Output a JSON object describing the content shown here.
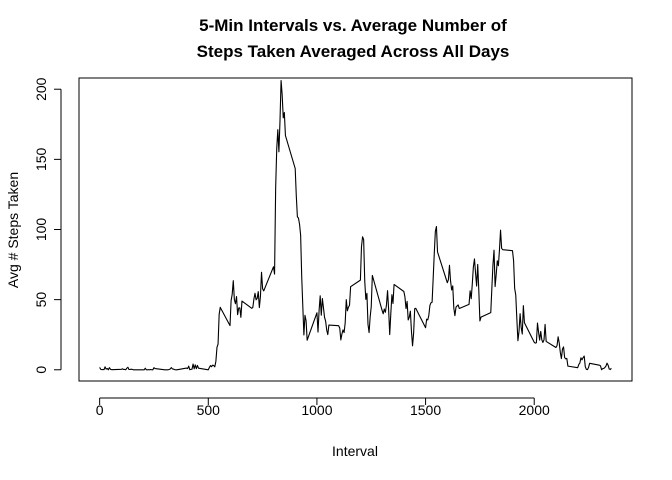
{
  "chart_data": {
    "type": "line",
    "title_line1": "5-Min Intervals vs. Average Number of",
    "title_line2": "Steps Taken Averaged Across All Days",
    "xlabel": "Interval",
    "ylabel": "Avg # Steps Taken",
    "xlim": [
      -95,
      2450
    ],
    "ylim": [
      -8,
      208
    ],
    "x_ticks": [
      0,
      500,
      1000,
      1500,
      2000
    ],
    "x_tick_labels": [
      "0",
      "500",
      "1000",
      "1500",
      "2000"
    ],
    "y_ticks": [
      0,
      50,
      100,
      150,
      200
    ],
    "y_tick_labels": [
      "0",
      "50",
      "100",
      "150",
      "200"
    ],
    "grid": false,
    "legend": "none",
    "series": [
      {
        "color": "#000000",
        "points": [
          [
            0,
            1.7
          ],
          [
            5,
            0.3
          ],
          [
            10,
            0.1
          ],
          [
            15,
            0.2
          ],
          [
            20,
            0.1
          ],
          [
            25,
            2.1
          ],
          [
            30,
            0.5
          ],
          [
            35,
            0.9
          ],
          [
            40,
            0
          ],
          [
            45,
            1.5
          ],
          [
            50,
            0.3
          ],
          [
            55,
            0.1
          ],
          [
            100,
            0.3
          ],
          [
            105,
            0.7
          ],
          [
            110,
            0.2
          ],
          [
            115,
            0.3
          ],
          [
            120,
            0
          ],
          [
            125,
            1.1
          ],
          [
            130,
            1.8
          ],
          [
            135,
            0.2
          ],
          [
            140,
            0.2
          ],
          [
            145,
            0.4
          ],
          [
            150,
            0.3
          ],
          [
            155,
            0
          ],
          [
            200,
            0
          ],
          [
            205,
            0
          ],
          [
            210,
            1.1
          ],
          [
            215,
            0
          ],
          [
            220,
            0
          ],
          [
            225,
            0.1
          ],
          [
            230,
            0
          ],
          [
            235,
            0.2
          ],
          [
            240,
            0
          ],
          [
            245,
            0
          ],
          [
            250,
            1.5
          ],
          [
            255,
            0.9
          ],
          [
            300,
            0
          ],
          [
            305,
            0
          ],
          [
            310,
            0
          ],
          [
            315,
            0
          ],
          [
            320,
            0.2
          ],
          [
            325,
            0.6
          ],
          [
            330,
            1.6
          ],
          [
            335,
            0.6
          ],
          [
            340,
            0.5
          ],
          [
            345,
            0.1
          ],
          [
            350,
            0
          ],
          [
            355,
            0
          ],
          [
            400,
            1.2
          ],
          [
            405,
            0.9
          ],
          [
            410,
            2.6
          ],
          [
            415,
            0
          ],
          [
            420,
            0.3
          ],
          [
            425,
            0.4
          ],
          [
            430,
            4.1
          ],
          [
            435,
            0.7
          ],
          [
            440,
            3.5
          ],
          [
            445,
            0.8
          ],
          [
            450,
            3.1
          ],
          [
            455,
            1.1
          ],
          [
            500,
            0
          ],
          [
            505,
            1.6
          ],
          [
            510,
            3
          ],
          [
            515,
            2.2
          ],
          [
            520,
            3.3
          ],
          [
            525,
            3
          ],
          [
            530,
            2.1
          ],
          [
            535,
            6.1
          ],
          [
            540,
            16
          ],
          [
            545,
            18.3
          ],
          [
            550,
            39.5
          ],
          [
            555,
            44.5
          ],
          [
            600,
            31.5
          ],
          [
            605,
            49.3
          ],
          [
            610,
            53.8
          ],
          [
            615,
            63.5
          ],
          [
            620,
            50
          ],
          [
            625,
            47.1
          ],
          [
            630,
            52.2
          ],
          [
            635,
            39.3
          ],
          [
            640,
            44
          ],
          [
            645,
            44.2
          ],
          [
            650,
            37.4
          ],
          [
            655,
            49
          ],
          [
            700,
            43.8
          ],
          [
            705,
            44.4
          ],
          [
            710,
            50.5
          ],
          [
            715,
            54.5
          ],
          [
            720,
            49.9
          ],
          [
            725,
            50.9
          ],
          [
            730,
            55.7
          ],
          [
            735,
            44.3
          ],
          [
            740,
            52.3
          ],
          [
            745,
            69.5
          ],
          [
            750,
            57.8
          ],
          [
            755,
            56.2
          ],
          [
            800,
            73.4
          ],
          [
            805,
            68.2
          ],
          [
            810,
            129.4
          ],
          [
            815,
            157.5
          ],
          [
            820,
            171.2
          ],
          [
            825,
            155.4
          ],
          [
            830,
            177.3
          ],
          [
            835,
            206.2
          ],
          [
            840,
            195.9
          ],
          [
            845,
            179.6
          ],
          [
            850,
            183.4
          ],
          [
            855,
            167
          ],
          [
            900,
            143.5
          ],
          [
            905,
            124
          ],
          [
            910,
            109.1
          ],
          [
            915,
            108.1
          ],
          [
            920,
            103.7
          ],
          [
            925,
            95.97
          ],
          [
            930,
            66.2
          ],
          [
            935,
            45.2
          ],
          [
            940,
            24.8
          ],
          [
            945,
            38.8
          ],
          [
            950,
            35
          ],
          [
            955,
            21.1
          ],
          [
            1000,
            40.6
          ],
          [
            1005,
            26.9
          ],
          [
            1010,
            42.4
          ],
          [
            1015,
            52.7
          ],
          [
            1020,
            38.9
          ],
          [
            1025,
            50.8
          ],
          [
            1030,
            44.3
          ],
          [
            1035,
            37.4
          ],
          [
            1040,
            34.7
          ],
          [
            1045,
            28.3
          ],
          [
            1050,
            25.1
          ],
          [
            1055,
            31.9
          ],
          [
            1100,
            31.4
          ],
          [
            1105,
            29.7
          ],
          [
            1110,
            21.3
          ],
          [
            1115,
            25.5
          ],
          [
            1120,
            28.4
          ],
          [
            1125,
            26.5
          ],
          [
            1130,
            33.4
          ],
          [
            1135,
            49.98
          ],
          [
            1140,
            42
          ],
          [
            1145,
            44.6
          ],
          [
            1150,
            46
          ],
          [
            1155,
            59.2
          ],
          [
            1200,
            63.9
          ],
          [
            1205,
            87.7
          ],
          [
            1210,
            94.8
          ],
          [
            1215,
            92.8
          ],
          [
            1220,
            63.4
          ],
          [
            1225,
            50.2
          ],
          [
            1230,
            54.5
          ],
          [
            1235,
            32.4
          ],
          [
            1240,
            26.5
          ],
          [
            1245,
            37.7
          ],
          [
            1250,
            45.1
          ],
          [
            1255,
            67.3
          ],
          [
            1300,
            42.3
          ],
          [
            1305,
            39.9
          ],
          [
            1310,
            43.3
          ],
          [
            1315,
            40.98
          ],
          [
            1320,
            46.2
          ],
          [
            1325,
            56.4
          ],
          [
            1330,
            42.8
          ],
          [
            1335,
            25.1
          ],
          [
            1340,
            39.97
          ],
          [
            1345,
            53.5
          ],
          [
            1350,
            47.3
          ],
          [
            1355,
            60.8
          ],
          [
            1400,
            55.8
          ],
          [
            1405,
            51.96
          ],
          [
            1410,
            43.6
          ],
          [
            1415,
            48.7
          ],
          [
            1420,
            35.5
          ],
          [
            1425,
            37.5
          ],
          [
            1430,
            41.8
          ],
          [
            1435,
            27.5
          ],
          [
            1440,
            17.1
          ],
          [
            1445,
            26.1
          ],
          [
            1450,
            43.6
          ],
          [
            1455,
            43.8
          ],
          [
            1500,
            30
          ],
          [
            1505,
            36.1
          ],
          [
            1510,
            35.5
          ],
          [
            1515,
            38.8
          ],
          [
            1520,
            45.96
          ],
          [
            1525,
            47.8
          ],
          [
            1530,
            48.1
          ],
          [
            1535,
            65.3
          ],
          [
            1540,
            82.9
          ],
          [
            1545,
            98.7
          ],
          [
            1550,
            102.1
          ],
          [
            1555,
            83.96
          ],
          [
            1600,
            62.1
          ],
          [
            1605,
            64.1
          ],
          [
            1610,
            74.5
          ],
          [
            1615,
            63.2
          ],
          [
            1620,
            56.9
          ],
          [
            1625,
            59.8
          ],
          [
            1630,
            43.9
          ],
          [
            1635,
            38.6
          ],
          [
            1640,
            44.7
          ],
          [
            1645,
            45.5
          ],
          [
            1650,
            46.2
          ],
          [
            1655,
            43.7
          ],
          [
            1700,
            46.6
          ],
          [
            1705,
            56.3
          ],
          [
            1710,
            50.7
          ],
          [
            1715,
            61.2
          ],
          [
            1720,
            73.4
          ],
          [
            1725,
            79
          ],
          [
            1730,
            68.9
          ],
          [
            1735,
            59.7
          ],
          [
            1740,
            75.1
          ],
          [
            1745,
            56.5
          ],
          [
            1750,
            34.8
          ],
          [
            1755,
            37.5
          ],
          [
            1800,
            40.7
          ],
          [
            1805,
            58
          ],
          [
            1810,
            74.7
          ],
          [
            1815,
            85.3
          ],
          [
            1820,
            59.3
          ],
          [
            1825,
            67.8
          ],
          [
            1830,
            77.7
          ],
          [
            1835,
            74.2
          ],
          [
            1840,
            85.3
          ],
          [
            1845,
            99.5
          ],
          [
            1850,
            86.6
          ],
          [
            1855,
            85.6
          ],
          [
            1900,
            84.9
          ],
          [
            1905,
            77.8
          ],
          [
            1910,
            58
          ],
          [
            1915,
            53.4
          ],
          [
            1920,
            36.3
          ],
          [
            1925,
            20.7
          ],
          [
            1930,
            27.4
          ],
          [
            1935,
            40
          ],
          [
            1940,
            30.2
          ],
          [
            1945,
            25.5
          ],
          [
            1950,
            45.7
          ],
          [
            1955,
            33.5
          ],
          [
            2000,
            19.6
          ],
          [
            2005,
            19
          ],
          [
            2010,
            19.3
          ],
          [
            2015,
            33.3
          ],
          [
            2020,
            26.8
          ],
          [
            2025,
            21.2
          ],
          [
            2030,
            27.3
          ],
          [
            2035,
            21.3
          ],
          [
            2040,
            19.5
          ],
          [
            2045,
            21.3
          ],
          [
            2050,
            32.3
          ],
          [
            2055,
            20.2
          ],
          [
            2100,
            15.9
          ],
          [
            2105,
            17.2
          ],
          [
            2110,
            23.5
          ],
          [
            2115,
            19.2
          ],
          [
            2120,
            12.5
          ],
          [
            2125,
            8
          ],
          [
            2130,
            14.7
          ],
          [
            2135,
            16.3
          ],
          [
            2140,
            8.7
          ],
          [
            2145,
            7.8
          ],
          [
            2150,
            8.1
          ],
          [
            2155,
            2.6
          ],
          [
            2200,
            1.5
          ],
          [
            2205,
            3.7
          ],
          [
            2210,
            4.8
          ],
          [
            2215,
            8.5
          ],
          [
            2220,
            7.1
          ],
          [
            2225,
            8.7
          ],
          [
            2230,
            9.8
          ],
          [
            2235,
            2.2
          ],
          [
            2240,
            0.3
          ],
          [
            2245,
            0.1
          ],
          [
            2250,
            1.6
          ],
          [
            2255,
            4.6
          ],
          [
            2300,
            3.3
          ],
          [
            2305,
            2.8
          ],
          [
            2310,
            0
          ],
          [
            2315,
            0.8
          ],
          [
            2320,
            1
          ],
          [
            2325,
            1.6
          ],
          [
            2330,
            2.6
          ],
          [
            2335,
            4.7
          ],
          [
            2340,
            3.3
          ],
          [
            2345,
            0.6
          ],
          [
            2350,
            0.2
          ],
          [
            2355,
            1.1
          ]
        ]
      }
    ]
  }
}
